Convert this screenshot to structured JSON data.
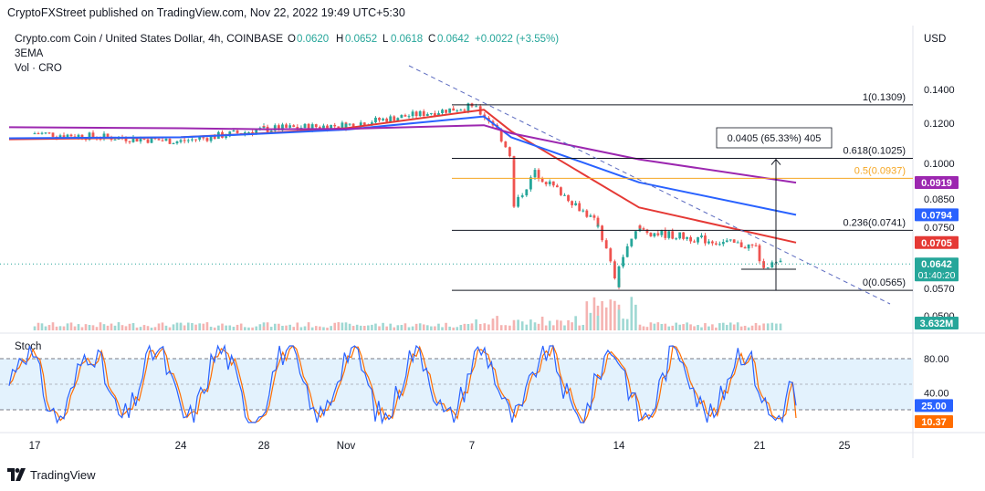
{
  "header": {
    "publisher": "CryptoFXStreet published on TradingView.com, Nov 22, 2022 19:49 UTC+5:30"
  },
  "legend": {
    "symbol": "Crypto.com Coin / United States Dollar, 4h, COINBASE",
    "o_label": "O",
    "o_value": "0.0620",
    "h_label": "H",
    "h_value": "0.0652",
    "l_label": "L",
    "l_value": "0.0618",
    "c_label": "C",
    "c_value": "0.0642",
    "change": "+0.0022 (+3.55%)",
    "indicator1": "3EMA",
    "indicator2": "Vol · CRO"
  },
  "footer": {
    "brand": "TradingView"
  },
  "colors": {
    "up": "#26a69a",
    "down": "#ef5350",
    "ema_red": "#e53935",
    "ema_blue": "#2962ff",
    "ema_purple": "#9c27b0",
    "fib_yellow": "#f5a623",
    "stoch_k": "#2962ff",
    "stoch_d": "#ff6d00",
    "stoch_band": "#e3f2fd"
  },
  "chart_data": {
    "type": "candlestick",
    "title": "Crypto.com Coin / United States Dollar, 4h, COINBASE",
    "currency": "USD",
    "x_ticks": [
      "17",
      "24",
      "28",
      "Nov",
      "7",
      "14",
      "21",
      "25"
    ],
    "y_ticks": [
      "0.1400",
      "0.1200",
      "0.1000",
      "0.0850",
      "0.0750",
      "0.0570",
      "0.0500"
    ],
    "ylim": [
      0.049,
      0.15
    ],
    "price_segments": [
      {
        "from": "17",
        "to": "24",
        "start": 0.115,
        "end": 0.111
      },
      {
        "from": "24",
        "to": "28",
        "start": 0.111,
        "end": 0.117
      },
      {
        "from": "28",
        "to": "Nov",
        "start": 0.117,
        "end": 0.119
      },
      {
        "from": "Nov",
        "to": "7",
        "start": 0.119,
        "end": 0.13
      },
      {
        "from": "7",
        "to": "8",
        "start": 0.13,
        "end": 0.12
      },
      {
        "from": "8",
        "to": "9",
        "start": 0.12,
        "end": 0.101
      },
      {
        "from": "9",
        "to": "10",
        "start": 0.082,
        "end": 0.096
      },
      {
        "from": "10",
        "to": "13",
        "start": 0.096,
        "end": 0.076
      },
      {
        "from": "13",
        "to": "14",
        "start": 0.076,
        "end": 0.0565
      },
      {
        "from": "14",
        "to": "15",
        "start": 0.064,
        "end": 0.0755
      },
      {
        "from": "15",
        "to": "21",
        "start": 0.074,
        "end": 0.069
      },
      {
        "from": "21",
        "to": "22",
        "start": 0.064,
        "end": 0.0642
      }
    ],
    "ema_lines": [
      {
        "color": "red",
        "values": [
          0.112,
          0.113,
          0.115,
          0.1175,
          0.128,
          0.116,
          0.082,
          0.0705
        ]
      },
      {
        "color": "blue",
        "values": [
          0.1125,
          0.113,
          0.1148,
          0.1168,
          0.124,
          0.113,
          0.092,
          0.0794
        ]
      },
      {
        "color": "purple",
        "values": [
          0.118,
          0.1175,
          0.117,
          0.1172,
          0.119,
          0.115,
          0.102,
          0.0919
        ]
      }
    ],
    "fibonacci": [
      {
        "label": "1(0.1309)",
        "value": 0.1309
      },
      {
        "label": "0.618(0.1025)",
        "value": 0.1025
      },
      {
        "label": "0.5(0.0937)",
        "value": 0.0937
      },
      {
        "label": "0.236(0.0741)",
        "value": 0.0741
      },
      {
        "label": "0(0.0565)",
        "value": 0.0565
      }
    ],
    "measure_label": "0.0405 (65.33%) 405",
    "price_badges": [
      {
        "value": 0.0919,
        "text": "0.0919",
        "color": "#9c27b0"
      },
      {
        "value": 0.0794,
        "text": "0.0794",
        "color": "#2962ff"
      },
      {
        "value": 0.0705,
        "text": "0.0705",
        "color": "#e53935"
      },
      {
        "value": 0.0642,
        "text": "0.0642",
        "subtext": "01:40:20",
        "color": "#26a69a"
      }
    ],
    "volume_badge": "3.632M",
    "stoch": {
      "label": "Stoch",
      "y_ticks": [
        "80.00",
        "40.00"
      ],
      "k_value": "25.00",
      "d_value": "10.37",
      "upper": 80,
      "lower": 20
    }
  }
}
